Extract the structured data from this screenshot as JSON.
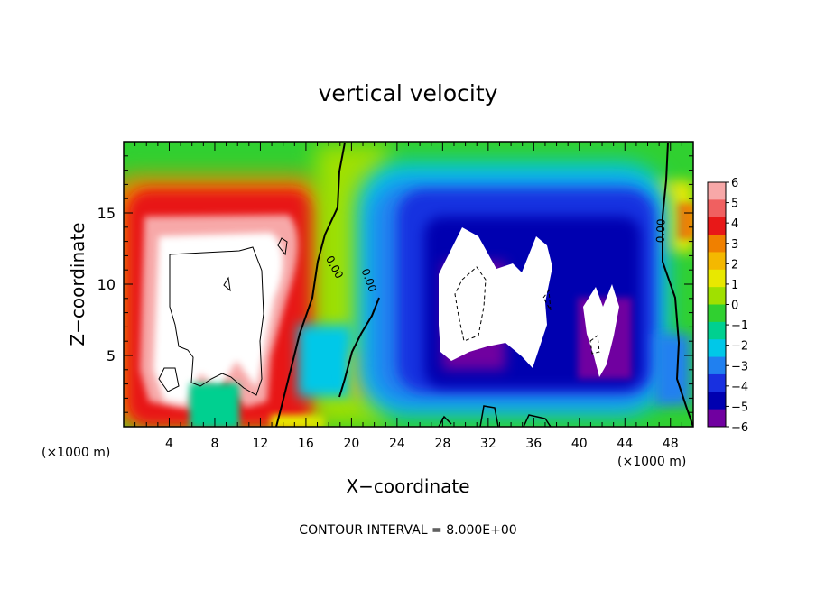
{
  "chart_data": {
    "type": "heatmap",
    "title": "vertical velocity",
    "xlabel": "X−coordinate",
    "ylabel": "Z−coordinate",
    "x_unit_left": "(×1000 m)",
    "x_unit_right": "(×1000 m)",
    "footer": "CONTOUR INTERVAL = 8.000E+00",
    "xlim": [
      0,
      50
    ],
    "ylim": [
      0,
      20
    ],
    "x_ticks": [
      4,
      8,
      12,
      16,
      20,
      24,
      28,
      32,
      36,
      40,
      44,
      48
    ],
    "x_tick_labels": [
      "4",
      "8",
      "12",
      "16",
      "20",
      "24",
      "28",
      "32",
      "36",
      "40",
      "44",
      "48"
    ],
    "y_ticks": [
      5,
      10,
      15
    ],
    "y_tick_labels": [
      "5",
      "10",
      "15"
    ],
    "colorbar": {
      "levels": [
        6,
        5,
        4,
        3,
        2,
        1,
        0,
        -1,
        -2,
        -3,
        -4,
        -5,
        -6
      ],
      "labels": [
        "6",
        "5",
        "4",
        "3",
        "2",
        "1",
        "0",
        "−1",
        "−2",
        "−3",
        "−4",
        "−5",
        "−6"
      ],
      "colors": [
        "#f7a8a8",
        "#f06060",
        "#e81818",
        "#f08000",
        "#f4b800",
        "#e8e800",
        "#a0e000",
        "#30d030",
        "#00d090",
        "#00c8e8",
        "#2080f0",
        "#1830e0",
        "#0000b0",
        "#7000a0"
      ]
    },
    "contour_labels": [
      "0.00",
      "0.00",
      "0.00"
    ],
    "features": [
      {
        "name": "updraft",
        "x": 7,
        "z": 10,
        "value": 6,
        "x_extent": [
          1,
          15
        ],
        "z_extent": [
          1,
          16
        ]
      },
      {
        "name": "downdraft",
        "x": 33,
        "z": 10,
        "value": -6,
        "x_extent": [
          22,
          46
        ],
        "z_extent": [
          2,
          15
        ]
      }
    ]
  }
}
